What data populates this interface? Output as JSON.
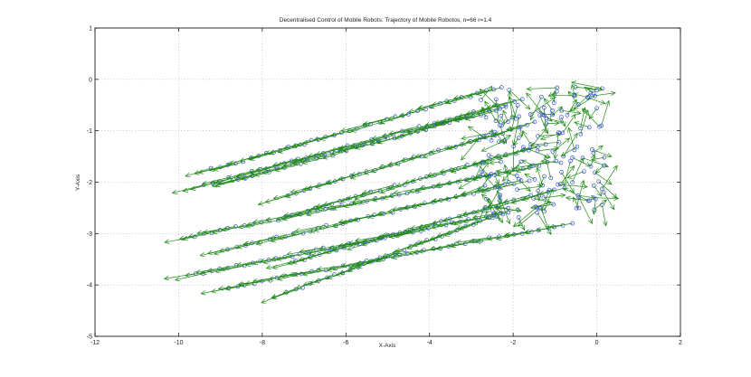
{
  "chart_data": {
    "type": "scatter",
    "title": "Decentralised Control of Mobile Robots: Trajectory of Mobile Robotos, n=66 r=1.4",
    "xlabel": "X-Axis",
    "ylabel": "Y-Axis",
    "xlim": [
      -12,
      2
    ],
    "ylim": [
      -5,
      1
    ],
    "xticks": [
      "-12",
      "-10",
      "-8",
      "-6",
      "-4",
      "-2",
      "0",
      "2"
    ],
    "yticks": [
      "-5",
      "-4",
      "-3",
      "-2",
      "-1",
      "0",
      "1"
    ],
    "grid": true,
    "legend": "none",
    "colors": {
      "robot_marker": "#3a4fd0",
      "velocity_arrow": "#1f8a16"
    },
    "series": [
      {
        "marker": "circle",
        "arrows": true,
        "trajectories": [
          {
            "start": [
              -9.2,
              -1.75
            ],
            "end": [
              -2.3,
              -0.15
            ],
            "steps": 38
          },
          {
            "start": [
              -8.6,
              -1.95
            ],
            "end": [
              -2.2,
              -0.55
            ],
            "steps": 34
          },
          {
            "start": [
              -9.4,
              -2.05
            ],
            "end": [
              -1.8,
              -0.4
            ],
            "steps": 40
          },
          {
            "start": [
              -7.4,
              -2.25
            ],
            "end": [
              -1.5,
              -0.85
            ],
            "steps": 31
          },
          {
            "start": [
              -6.9,
              -2.55
            ],
            "end": [
              -1.2,
              -1.25
            ],
            "steps": 30
          },
          {
            "start": [
              -9.6,
              -3.05
            ],
            "end": [
              -1.0,
              -1.6
            ],
            "steps": 44
          },
          {
            "start": [
              -8.8,
              -3.3
            ],
            "end": [
              -1.6,
              -1.95
            ],
            "steps": 37
          },
          {
            "start": [
              -7.2,
              -3.55
            ],
            "end": [
              -0.8,
              -2.1
            ],
            "steps": 33
          },
          {
            "start": [
              -9.6,
              -3.8
            ],
            "end": [
              -1.9,
              -2.55
            ],
            "steps": 40
          },
          {
            "start": [
              -8.8,
              -4.05
            ],
            "end": [
              -0.6,
              -2.8
            ],
            "steps": 42
          },
          {
            "start": [
              -7.4,
              -4.15
            ],
            "end": [
              -2.4,
              -2.65
            ],
            "steps": 27
          }
        ],
        "cluster": {
          "center": [
            -1.2,
            -1.4
          ],
          "spread": [
            1.6,
            1.3
          ],
          "points": 150
        }
      }
    ]
  }
}
